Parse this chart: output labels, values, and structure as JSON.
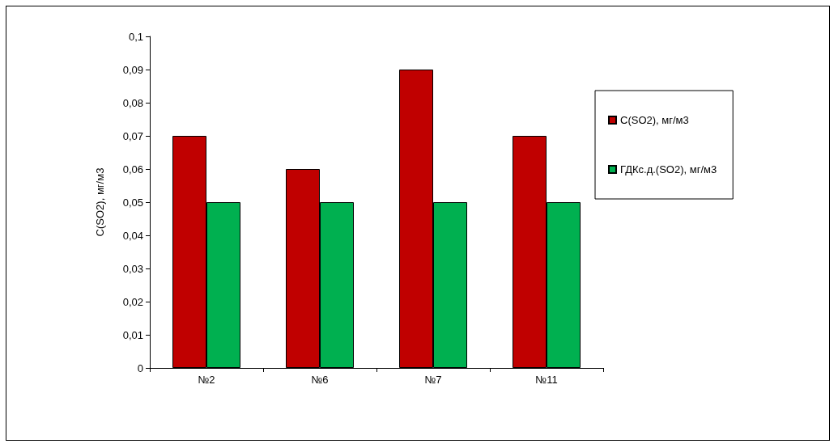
{
  "chart_data": {
    "type": "bar",
    "ylabel": "C(SO2), мг/м3",
    "categories": [
      "№2",
      "№6",
      "№7",
      "№11"
    ],
    "series": [
      {
        "name": "C(SO2), мг/м3",
        "color": "#c00000",
        "values": [
          0.07,
          0.06,
          0.09,
          0.07
        ]
      },
      {
        "name": "ГДКс.д.(SO2), мг/м3",
        "color": "#00b050",
        "values": [
          0.05,
          0.05,
          0.05,
          0.05
        ]
      }
    ],
    "ylim": [
      0,
      0.1
    ],
    "yticks": [
      0,
      {
        "value": 0.01,
        "label": "0,01"
      },
      {
        "value": 0.02,
        "label": "0,02"
      },
      {
        "value": 0.03,
        "label": "0,03"
      },
      {
        "value": 0.04,
        "label": "0,04"
      },
      {
        "value": 0.05,
        "label": "0,05"
      },
      {
        "value": 0.06,
        "label": "0,06"
      },
      {
        "value": 0.07,
        "label": "0,07"
      },
      {
        "value": 0.08,
        "label": "0,08"
      },
      {
        "value": 0.09,
        "label": "0,09"
      },
      {
        "value": 0.1,
        "label": "0,1"
      }
    ],
    "grid": false,
    "legend": "right"
  }
}
